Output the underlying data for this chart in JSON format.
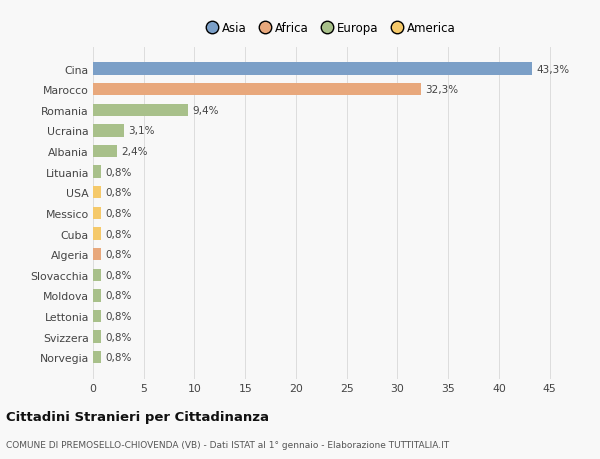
{
  "categories": [
    "Norvegia",
    "Svizzera",
    "Lettonia",
    "Moldova",
    "Slovacchia",
    "Algeria",
    "Cuba",
    "Messico",
    "USA",
    "Lituania",
    "Albania",
    "Ucraina",
    "Romania",
    "Marocco",
    "Cina"
  ],
  "values": [
    0.8,
    0.8,
    0.8,
    0.8,
    0.8,
    0.8,
    0.8,
    0.8,
    0.8,
    0.8,
    2.4,
    3.1,
    9.4,
    32.3,
    43.3
  ],
  "labels": [
    "0,8%",
    "0,8%",
    "0,8%",
    "0,8%",
    "0,8%",
    "0,8%",
    "0,8%",
    "0,8%",
    "0,8%",
    "0,8%",
    "2,4%",
    "3,1%",
    "9,4%",
    "32,3%",
    "43,3%"
  ],
  "colors": [
    "#a8c08a",
    "#a8c08a",
    "#a8c08a",
    "#a8c08a",
    "#a8c08a",
    "#e8a87c",
    "#f5c96a",
    "#f5c96a",
    "#f5c96a",
    "#a8c08a",
    "#a8c08a",
    "#a8c08a",
    "#a8c08a",
    "#e8a87c",
    "#7b9fc7"
  ],
  "continent": [
    "Europa",
    "Europa",
    "Europa",
    "Europa",
    "Europa",
    "Africa",
    "America",
    "America",
    "America",
    "Europa",
    "Europa",
    "Europa",
    "Europa",
    "Africa",
    "Asia"
  ],
  "legend_labels": [
    "Asia",
    "Africa",
    "Europa",
    "America"
  ],
  "legend_colors": [
    "#7b9fc7",
    "#e8a87c",
    "#a8c08a",
    "#f5c96a"
  ],
  "title": "Cittadini Stranieri per Cittadinanza",
  "subtitle": "COMUNE DI PREMOSELLO-CHIOVENDA (VB) - Dati ISTAT al 1° gennaio - Elaborazione TUTTITALIA.IT",
  "xlim": [
    0,
    47
  ],
  "xticks": [
    0,
    5,
    10,
    15,
    20,
    25,
    30,
    35,
    40,
    45
  ],
  "background_color": "#f8f8f8",
  "bar_height": 0.6
}
